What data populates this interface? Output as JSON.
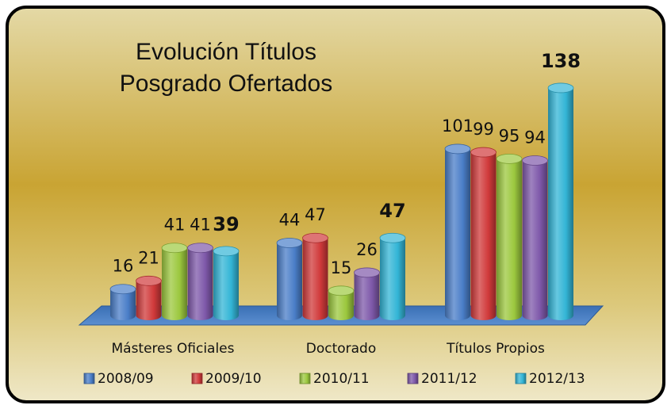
{
  "chart_data": {
    "type": "bar",
    "title": "Evolución Títulos Posgrado Ofertados",
    "categories": [
      "Másteres Oficiales",
      "Doctorado",
      "Títulos Propios"
    ],
    "series": [
      {
        "name": "2008/09",
        "color": "#4a7ec8",
        "values": [
          16,
          44,
          101
        ]
      },
      {
        "name": "2009/10",
        "color": "#d0393a",
        "values": [
          21,
          47,
          99
        ]
      },
      {
        "name": "2010/11",
        "color": "#9cc83e",
        "values": [
          41,
          15,
          95
        ]
      },
      {
        "name": "2011/12",
        "color": "#7e58a9",
        "values": [
          41,
          26,
          94
        ]
      },
      {
        "name": "2012/13",
        "color": "#33b5d6",
        "values": [
          39,
          47,
          138
        ]
      }
    ]
  }
}
